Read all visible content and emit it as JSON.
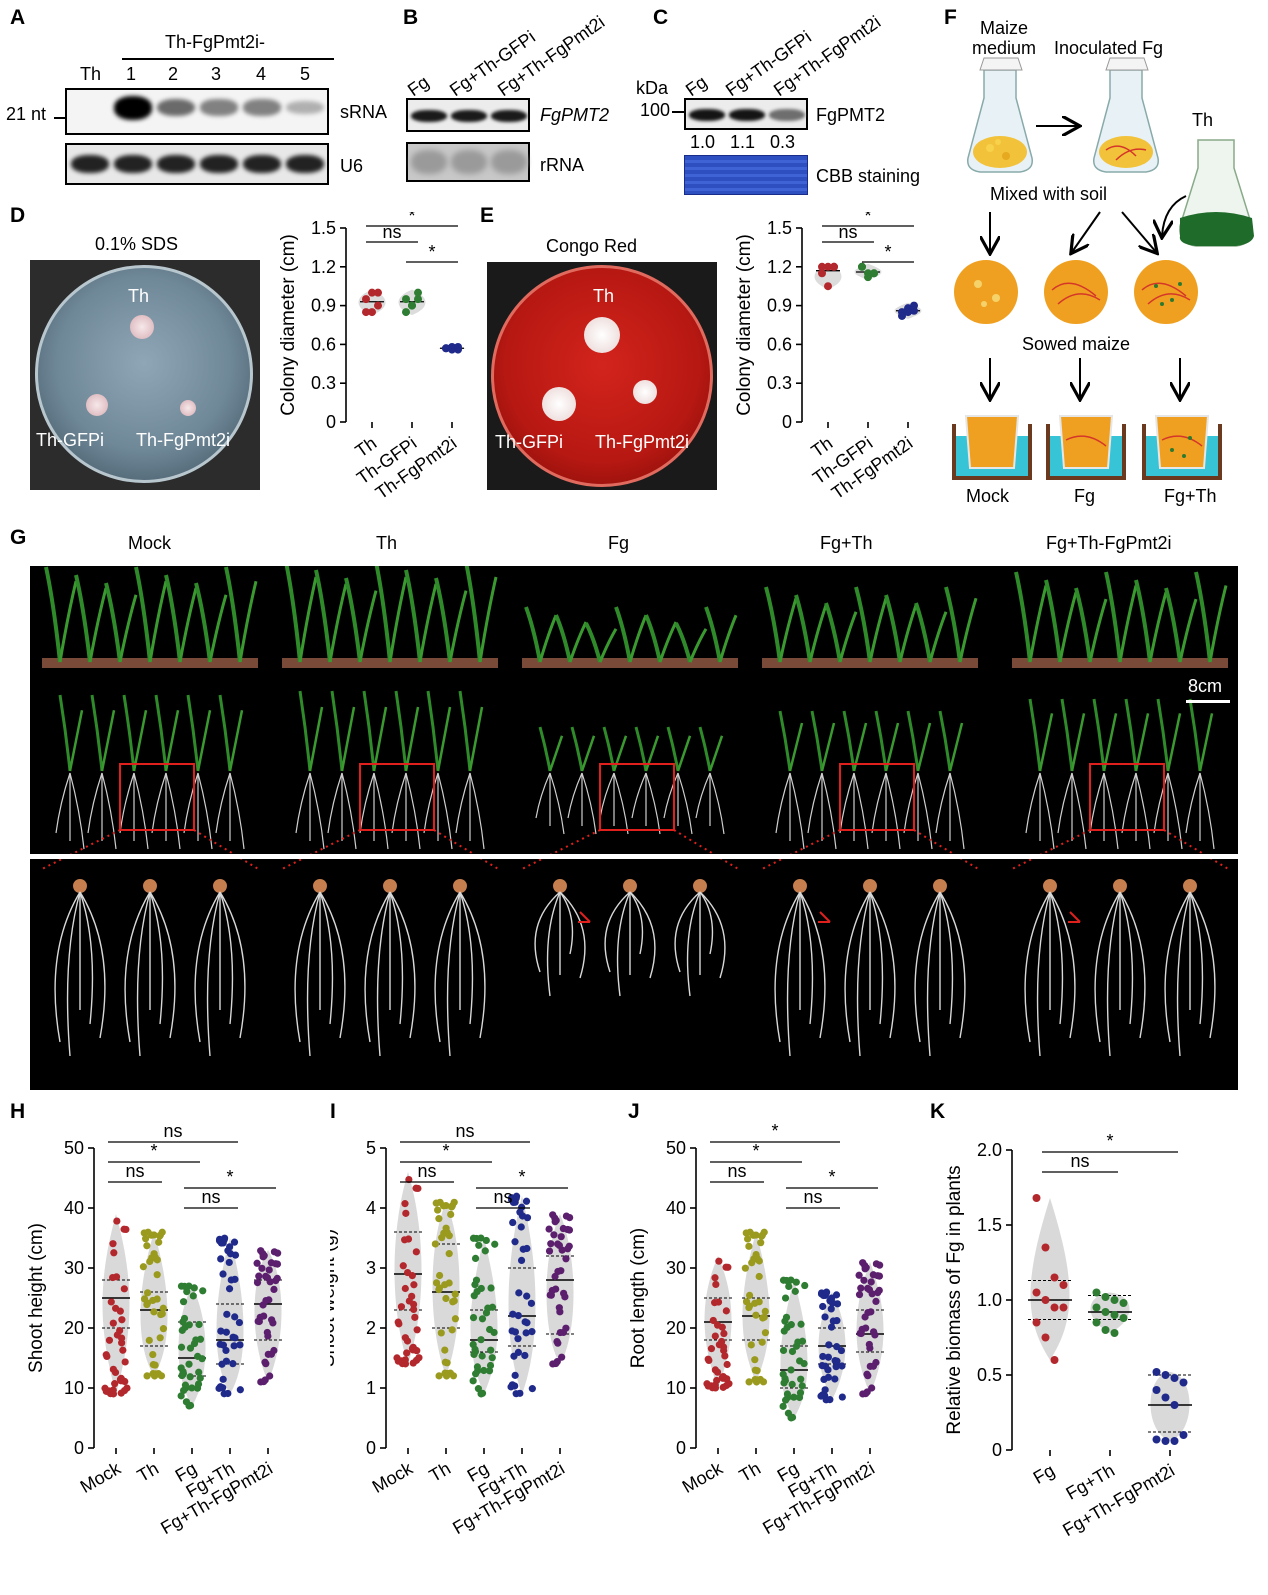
{
  "panel_letters": {
    "A": "A",
    "B": "B",
    "C": "C",
    "D": "D",
    "E": "E",
    "F": "F",
    "G": "G",
    "H": "H",
    "I": "I",
    "J": "J",
    "K": "K"
  },
  "panelA": {
    "header": "Th-FgPmt2i-",
    "lanes": [
      "Th",
      "1",
      "2",
      "3",
      "4",
      "5"
    ],
    "marker": "21 nt",
    "row1_label": "sRNA",
    "row2_label": "U6",
    "srna_intensity": [
      0.0,
      1.0,
      0.55,
      0.45,
      0.45,
      0.25
    ]
  },
  "panelB": {
    "lanes": [
      "Fg",
      "Fg+Th-GFPi",
      "Fg+Th-FgPmt2i"
    ],
    "row1_label": "FgPMT2",
    "row2_label": "rRNA"
  },
  "panelC": {
    "lanes": [
      "Fg",
      "Fg+Th-GFPi",
      "Fg+Th-FgPmt2i"
    ],
    "kda": "kDa",
    "marker": "100",
    "row1_label": "FgPMT2",
    "quant": [
      "1.0",
      "1.1",
      "0.3"
    ],
    "row2_label": "CBB staining"
  },
  "panelD": {
    "plate_title": "0.1% SDS",
    "plate_labels": [
      "Th",
      "Th-GFPi",
      "Th-FgPmt2i"
    ],
    "chart": {
      "ylabel": "Colony diameter (cm)",
      "ticks": [
        "0",
        "0.3",
        "0.6",
        "0.9",
        "1.2",
        "1.5"
      ],
      "groups": [
        "Th",
        "Th-GFPi",
        "Th-FgPmt2i"
      ],
      "sig": [
        "ns",
        "*",
        "*"
      ]
    }
  },
  "panelE": {
    "plate_title": "Congo Red",
    "plate_labels": [
      "Th",
      "Th-GFPi",
      "Th-FgPmt2i"
    ],
    "chart": {
      "ylabel": "Colony diameter (cm)",
      "ticks": [
        "0",
        "0.3",
        "0.6",
        "0.9",
        "1.2",
        "1.5"
      ],
      "groups": [
        "Th",
        "Th-GFPi",
        "Th-FgPmt2i"
      ],
      "sig": [
        "ns",
        "*",
        "*"
      ]
    }
  },
  "panelF": {
    "maize_medium": "Maize medium",
    "inoculated": "Inoculated Fg",
    "th": "Th",
    "mixed": "Mixed with soil",
    "sowed": "Sowed maize",
    "pots": [
      "Mock",
      "Fg",
      "Fg+Th"
    ]
  },
  "panelG": {
    "columns": [
      "Mock",
      "Th",
      "Fg",
      "Fg+Th",
      "Fg+Th-FgPmt2i"
    ],
    "scale": "8cm"
  },
  "chart_data": [
    {
      "type": "scatter",
      "panel": "D",
      "ylabel": "Colony diameter (cm)",
      "ylim": [
        0,
        1.5
      ],
      "categories": [
        "Th",
        "Th-GFPi",
        "Th-FgPmt2i"
      ],
      "colors": [
        "#b3282d",
        "#2e7d32",
        "#1f2a8a"
      ],
      "values": [
        [
          0.95,
          1.0,
          0.9,
          0.85,
          0.85,
          1.0
        ],
        [
          0.95,
          0.9,
          1.0,
          0.85,
          0.9,
          0.95
        ],
        [
          0.57,
          0.58,
          0.56,
          0.57,
          0.56,
          0.58
        ]
      ],
      "means": [
        0.93,
        0.93,
        0.57
      ],
      "significance": [
        {
          "a": 0,
          "b": 1,
          "label": "ns"
        },
        {
          "a": 1,
          "b": 2,
          "label": "*"
        },
        {
          "a": 0,
          "b": 2,
          "label": "*"
        }
      ]
    },
    {
      "type": "scatter",
      "panel": "E",
      "ylabel": "Colony diameter (cm)",
      "ylim": [
        0,
        1.5
      ],
      "categories": [
        "Th",
        "Th-GFPi",
        "Th-FgPmt2i"
      ],
      "colors": [
        "#b3282d",
        "#2e7d32",
        "#1f2a8a"
      ],
      "values": [
        [
          1.2,
          1.2,
          1.2,
          1.15,
          1.05,
          1.2
        ],
        [
          1.2,
          1.15,
          1.15,
          1.2,
          1.12,
          1.15
        ],
        [
          0.85,
          0.88,
          0.9,
          0.82,
          0.85,
          0.86
        ]
      ],
      "means": [
        1.17,
        1.16,
        0.86
      ],
      "significance": [
        {
          "a": 0,
          "b": 1,
          "label": "ns"
        },
        {
          "a": 1,
          "b": 2,
          "label": "*"
        },
        {
          "a": 0,
          "b": 2,
          "label": "*"
        }
      ]
    },
    {
      "type": "violin",
      "panel": "H",
      "ylabel": "Shoot height (cm)",
      "ylim": [
        0,
        50
      ],
      "ticks": [
        0,
        10,
        20,
        30,
        40,
        50
      ],
      "categories": [
        "Mock",
        "Th",
        "Fg",
        "Fg+Th",
        "Fg+Th-FgPmt2i"
      ],
      "colors": [
        "#b3282d",
        "#9a9a1e",
        "#2e7d32",
        "#1f2a8a",
        "#5b1f6e"
      ],
      "min": [
        9,
        12,
        7,
        9,
        11
      ],
      "max": [
        39,
        36,
        27,
        35,
        33
      ],
      "quartiles": [
        [
          20,
          25,
          28
        ],
        [
          17,
          23,
          26
        ],
        [
          12,
          15,
          21
        ],
        [
          14,
          18,
          24
        ],
        [
          18,
          24,
          28
        ]
      ],
      "significance": [
        {
          "a": 0,
          "b": 1,
          "label": "ns"
        },
        {
          "a": 0,
          "b": 2,
          "label": "*"
        },
        {
          "a": 0,
          "b": 3,
          "label": "ns"
        },
        {
          "a": 2,
          "b": 3,
          "label": "ns"
        },
        {
          "a": 2,
          "b": 4,
          "label": "*"
        }
      ]
    },
    {
      "type": "violin",
      "panel": "I",
      "ylabel": "Shoot weight (g)",
      "ylim": [
        0,
        5
      ],
      "ticks": [
        0,
        1,
        2,
        3,
        4,
        5
      ],
      "categories": [
        "Mock",
        "Th",
        "Fg",
        "Fg+Th",
        "Fg+Th-FgPmt2i"
      ],
      "colors": [
        "#b3282d",
        "#9a9a1e",
        "#2e7d32",
        "#1f2a8a",
        "#5b1f6e"
      ],
      "min": [
        1.4,
        1.2,
        0.9,
        0.9,
        1.4
      ],
      "max": [
        4.6,
        4.1,
        3.5,
        4.2,
        3.9
      ],
      "quartiles": [
        [
          2.3,
          2.9,
          3.6
        ],
        [
          2.0,
          2.6,
          3.4
        ],
        [
          1.6,
          1.8,
          2.3
        ],
        [
          1.7,
          2.2,
          3.0
        ],
        [
          1.9,
          2.8,
          3.2
        ]
      ],
      "significance": [
        {
          "a": 0,
          "b": 1,
          "label": "ns"
        },
        {
          "a": 0,
          "b": 2,
          "label": "*"
        },
        {
          "a": 0,
          "b": 3,
          "label": "ns"
        },
        {
          "a": 2,
          "b": 3,
          "label": "ns"
        },
        {
          "a": 2,
          "b": 4,
          "label": "*"
        }
      ]
    },
    {
      "type": "violin",
      "panel": "J",
      "ylabel": "Root length (cm)",
      "ylim": [
        0,
        50
      ],
      "ticks": [
        0,
        10,
        20,
        30,
        40,
        50
      ],
      "categories": [
        "Mock",
        "Th",
        "Fg",
        "Fg+Th",
        "Fg+Th-FgPmt2i"
      ],
      "colors": [
        "#b3282d",
        "#9a9a1e",
        "#2e7d32",
        "#1f2a8a",
        "#5b1f6e"
      ],
      "min": [
        10,
        11,
        5,
        8,
        9
      ],
      "max": [
        32,
        36,
        28,
        26,
        31
      ],
      "quartiles": [
        [
          18,
          21,
          25
        ],
        [
          18,
          22,
          25
        ],
        [
          10,
          13,
          17
        ],
        [
          14,
          17,
          20
        ],
        [
          16,
          19,
          23
        ]
      ],
      "significance": [
        {
          "a": 0,
          "b": 1,
          "label": "ns"
        },
        {
          "a": 0,
          "b": 2,
          "label": "*"
        },
        {
          "a": 0,
          "b": 3,
          "label": "*"
        },
        {
          "a": 2,
          "b": 3,
          "label": "ns"
        },
        {
          "a": 2,
          "b": 4,
          "label": "*"
        }
      ]
    },
    {
      "type": "violin",
      "panel": "K",
      "ylabel": "Relative biomass of Fg in plants",
      "ylim": [
        0,
        2.0
      ],
      "ticks": [
        "0",
        "0.5",
        "1.0",
        "1.5",
        "2.0"
      ],
      "categories": [
        "Fg",
        "Fg+Th",
        "Fg+Th-FgPmt2i"
      ],
      "colors": [
        "#b3282d",
        "#2e7d32",
        "#1f2a8a"
      ],
      "values": [
        [
          1.68,
          1.35,
          1.15,
          1.1,
          1.05,
          1.0,
          0.95,
          0.95,
          0.85,
          0.75,
          0.6
        ],
        [
          1.05,
          1.02,
          1.0,
          0.98,
          0.95,
          0.92,
          0.9,
          0.88,
          0.85,
          0.8,
          0.78
        ],
        [
          0.52,
          0.5,
          0.48,
          0.45,
          0.4,
          0.35,
          0.3,
          0.1,
          0.07,
          0.06,
          0.06
        ]
      ],
      "quartiles": [
        [
          0.87,
          1.0,
          1.13
        ],
        [
          0.87,
          0.92,
          1.03
        ],
        [
          0.12,
          0.3,
          0.5
        ]
      ],
      "significance": [
        {
          "a": 0,
          "b": 1,
          "label": "ns"
        },
        {
          "a": 0,
          "b": 2,
          "label": "*"
        }
      ]
    }
  ]
}
